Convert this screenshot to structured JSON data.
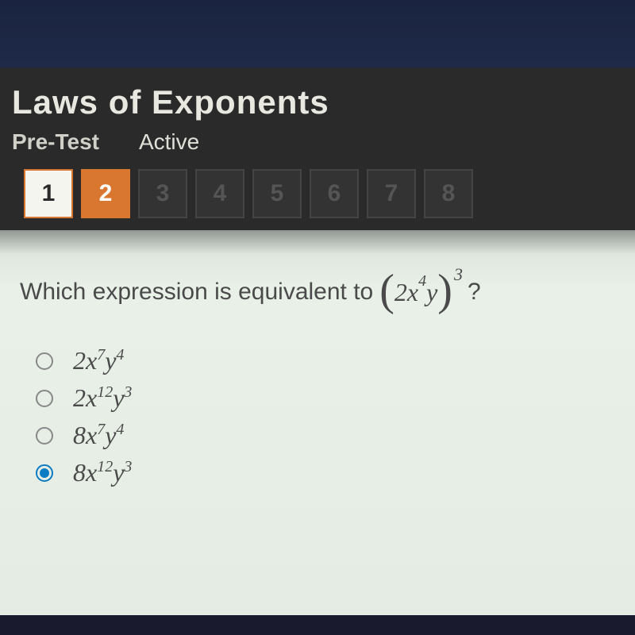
{
  "header": {
    "title": "Laws of Exponents",
    "subtitle": "Pre-Test",
    "activeTab": "Active"
  },
  "nav": {
    "items": [
      "1",
      "2",
      "3",
      "4",
      "5",
      "6",
      "7",
      "8"
    ],
    "completedIndex": 0,
    "currentIndex": 1
  },
  "question": {
    "prompt": "Which expression is equivalent to",
    "expr": {
      "coef": "2",
      "x": "x",
      "xexp": "4",
      "y": "y",
      "outer": "3"
    },
    "options": [
      {
        "coef": "2",
        "xexp": "7",
        "yexp": "4",
        "selected": false
      },
      {
        "coef": "2",
        "xexp": "12",
        "yexp": "3",
        "selected": false
      },
      {
        "coef": "8",
        "xexp": "7",
        "yexp": "4",
        "selected": false
      },
      {
        "coef": "8",
        "xexp": "12",
        "yexp": "3",
        "selected": true
      }
    ]
  },
  "colors": {
    "headerBg": "#2a2a2a",
    "accent": "#d97730",
    "radioSelected": "#0b7bc4",
    "contentBg": "#e8eee8"
  }
}
